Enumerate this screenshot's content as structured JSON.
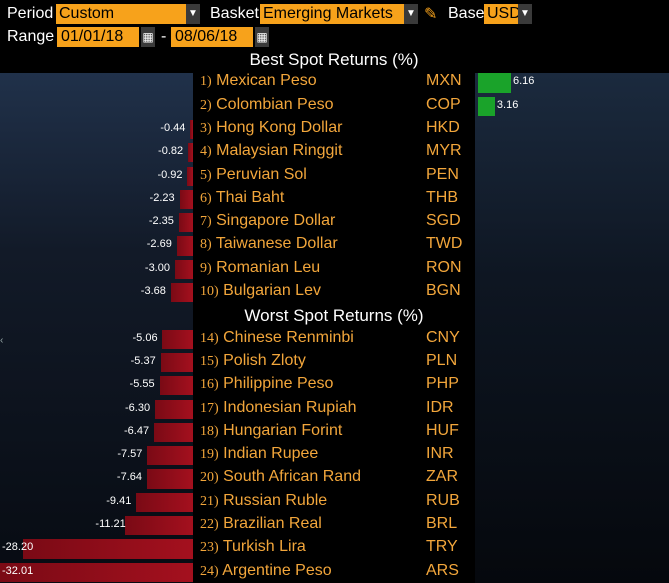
{
  "controls": {
    "period_label": "Period",
    "period_value": "Custom",
    "basket_label": "Basket",
    "basket_value": "Emerging Markets",
    "base_label": "Base",
    "base_value": "USD",
    "range_label": "Range",
    "range_start": "01/01/18",
    "range_sep": "-",
    "range_end": "08/06/18"
  },
  "colors": {
    "positive_bar": "#1aa32a",
    "negative_bar": "#a4101e",
    "label": "#f2a63b",
    "dropdown": "#f7a21b"
  },
  "chart_data": {
    "type": "bar",
    "unit": "%",
    "sections": [
      {
        "title": "Best Spot Returns (%)",
        "rows": [
          {
            "rank": "1)",
            "name": "Mexican Peso",
            "code": "MXN",
            "value": 6.16
          },
          {
            "rank": "2)",
            "name": "Colombian Peso",
            "code": "COP",
            "value": 3.16
          },
          {
            "rank": "3)",
            "name": "Hong Kong Dollar",
            "code": "HKD",
            "value": -0.44
          },
          {
            "rank": "4)",
            "name": "Malaysian Ringgit",
            "code": "MYR",
            "value": -0.82
          },
          {
            "rank": "5)",
            "name": "Peruvian Sol",
            "code": "PEN",
            "value": -0.92
          },
          {
            "rank": "6)",
            "name": "Thai Baht",
            "code": "THB",
            "value": -2.23
          },
          {
            "rank": "7)",
            "name": "Singapore Dollar",
            "code": "SGD",
            "value": -2.35
          },
          {
            "rank": "8)",
            "name": "Taiwanese Dollar",
            "code": "TWD",
            "value": -2.69
          },
          {
            "rank": "9)",
            "name": "Romanian Leu",
            "code": "RON",
            "value": -3.0
          },
          {
            "rank": "10)",
            "name": "Bulgarian Lev",
            "code": "BGN",
            "value": -3.68
          }
        ]
      },
      {
        "title": "Worst Spot Returns (%)",
        "rows": [
          {
            "rank": "14)",
            "name": "Chinese Renminbi",
            "code": "CNY",
            "value": -5.06
          },
          {
            "rank": "15)",
            "name": "Polish Zloty",
            "code": "PLN",
            "value": -5.37
          },
          {
            "rank": "16)",
            "name": "Philippine Peso",
            "code": "PHP",
            "value": -5.55
          },
          {
            "rank": "17)",
            "name": "Indonesian Rupiah",
            "code": "IDR",
            "value": -6.3
          },
          {
            "rank": "18)",
            "name": "Hungarian Forint",
            "code": "HUF",
            "value": -6.47
          },
          {
            "rank": "19)",
            "name": "Indian Rupee",
            "code": "INR",
            "value": -7.57
          },
          {
            "rank": "20)",
            "name": "South African Rand",
            "code": "ZAR",
            "value": -7.64
          },
          {
            "rank": "21)",
            "name": "Russian Ruble",
            "code": "RUB",
            "value": -9.41
          },
          {
            "rank": "22)",
            "name": "Brazilian Real",
            "code": "BRL",
            "value": -11.21
          },
          {
            "rank": "23)",
            "name": "Turkish Lira",
            "code": "TRY",
            "value": -28.2
          },
          {
            "rank": "24)",
            "name": "Argentine Peso",
            "code": "ARS",
            "value": -32.01
          }
        ]
      }
    ]
  }
}
